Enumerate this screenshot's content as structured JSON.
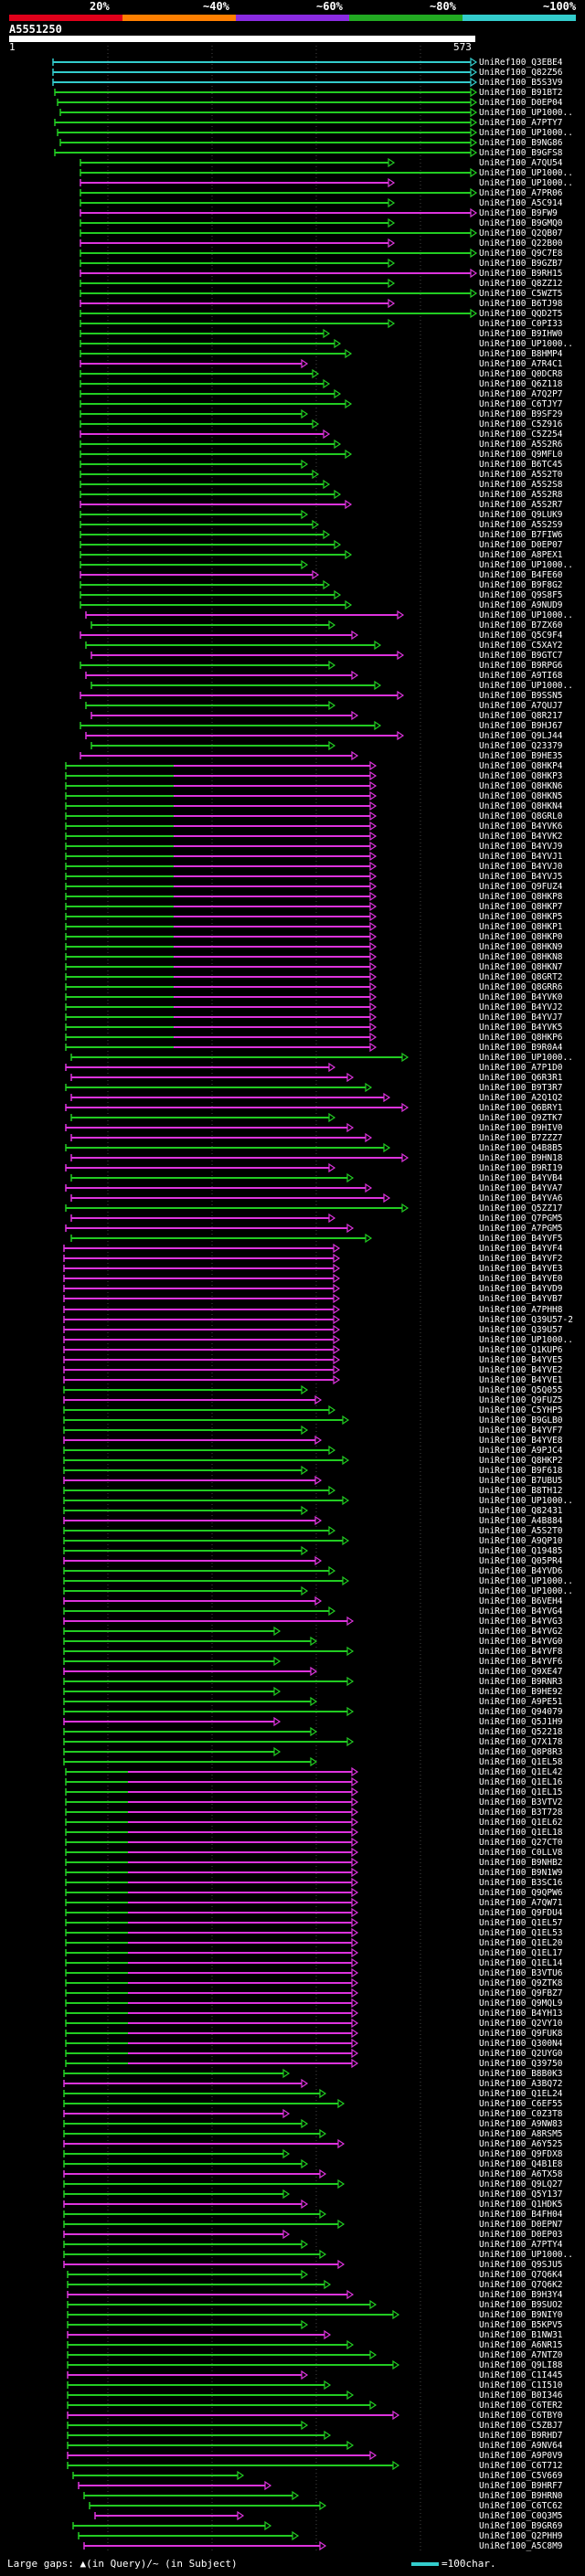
{
  "header": {
    "scale_labels": [
      "20%",
      "~40%",
      "~60%",
      "~80%",
      "~100%"
    ],
    "scale_colors": [
      "#e0001a",
      "#ff7f00",
      "#8a2be2",
      "#22aa22",
      "#33cccc"
    ],
    "query_id": "A5551250",
    "query_start": "1",
    "query_end": "573"
  },
  "footer": {
    "legend": "Large gaps: ▲(in Query)/~ (in Subject)",
    "scale_legend": "=100char."
  },
  "hit_labels": [
    "UniRef100_Q3EBE4",
    "UniRef100_Q82Z56",
    "UniRef100_B5S3V9",
    "UniRef100_B91BT2",
    "UniRef100_D0EP04",
    "UniRef100_UP1000..",
    "UniRef100_A7PTY7",
    "UniRef100_UP1000..",
    "UniRef100_B9NG86",
    "UniRef100_B9GFS8",
    "UniRef100_A7QU54",
    "UniRef100_UP1000..",
    "UniRef100_UP1000..",
    "UniRef100_A7PR06",
    "UniRef100_A5C914",
    "UniRef100_B9FW9",
    "UniRef100_B9GMQ0",
    "UniRef100_Q2QB07",
    "UniRef100_Q22B00",
    "UniRef100_Q9C7E8",
    "UniRef100_B9GZB7",
    "UniRef100_B9RH15",
    "UniRef100_Q8ZZ12",
    "UniRef100_C5WZT5",
    "UniRef100_B6TJ98",
    "UniRef100_QQD2T5",
    "UniRef100_C0PI33",
    "UniRef100_B9IHW0",
    "UniRef100_UP1000..",
    "UniRef100_B8HMP4",
    "UniRef100_A7R4C1",
    "UniRef100_Q0DCR8",
    "UniRef100_Q6Z118",
    "UniRef100_A7Q2P7",
    "UniRef100_C6TJY7",
    "UniRef100_B9SF29",
    "UniRef100_C5Z916",
    "UniRef100_C5Z254",
    "UniRef100_A5S2R6",
    "UniRef100_Q9MFL0",
    "UniRef100_B6TC45",
    "UniRef100_A5S2T0",
    "UniRef100_A5S2S8",
    "UniRef100_A5S2R8",
    "UniRef100_A5S2R7",
    "UniRef100_Q9LUK9",
    "UniRef100_A5S2S9",
    "UniRef100_B7FIW6",
    "UniRef100_D0EP07",
    "UniRef100_A8PEX1",
    "UniRef100_UP1000..",
    "UniRef100_B4FE60",
    "UniRef100_B9F8G2",
    "UniRef100_Q9S8F5",
    "UniRef100_A9NUD9",
    "UniRef100_UP1000..",
    "UniRef100_B7ZX60",
    "UniRef100_Q5C9F4",
    "UniRef100_C5XAY2",
    "UniRef100_B9GTC7",
    "UniRef100_B9RPG6",
    "UniRef100_A9TI68",
    "UniRef100_UP1000..",
    "UniRef100_B9SSN5",
    "UniRef100_A7QUJ7",
    "UniRef100_Q8R217",
    "UniRef100_B9HJ67",
    "UniRef100_Q9LJ44",
    "UniRef100_Q23379",
    "UniRef100_B9HE35",
    "UniRef100_Q8HKP4",
    "UniRef100_Q8HKP3",
    "UniRef100_Q8HKN6",
    "UniRef100_Q8HKN5",
    "UniRef100_Q8HKN4",
    "UniRef100_Q8GRL0",
    "UniRef100_B4YVK6",
    "UniRef100_B4YVK2",
    "UniRef100_B4YVJ9",
    "UniRef100_B4YVJ1",
    "UniRef100_B4YVJ0",
    "UniRef100_B4YVJ5",
    "UniRef100_Q9FUZ4",
    "UniRef100_Q8HKP8",
    "UniRef100_Q8HKP7",
    "UniRef100_Q8HKP5",
    "UniRef100_Q8HKP1",
    "UniRef100_Q8HKP0",
    "UniRef100_Q8HKN9",
    "UniRef100_Q8HKN8",
    "UniRef100_Q8HKN7",
    "UniRef100_Q8GRT2",
    "UniRef100_Q8GRR6",
    "UniRef100_B4YVK0",
    "UniRef100_B4YVJ2",
    "UniRef100_B4YVJ7",
    "UniRef100_B4YVK5",
    "UniRef100_Q8HKP6",
    "UniRef100_B9R0A4",
    "UniRef100_UP1000..",
    "UniRef100_A7P1D0",
    "UniRef100_Q6R3R1",
    "UniRef100_B9T3R7",
    "UniRef100_A2Q1Q2",
    "UniRef100_Q6BRY1",
    "UniRef100_Q9ZTK7",
    "UniRef100_B9HIV0",
    "UniRef100_B7ZZZ7",
    "UniRef100_Q4B8B5",
    "UniRef100_B9HN18",
    "UniRef100_B9RI19",
    "UniRef100_B4YVB4",
    "UniRef100_B4YVA7",
    "UniRef100_B4YVA6",
    "UniRef100_Q5ZZ17",
    "UniRef100_Q7PGM5",
    "UniRef100_A7PGM5",
    "UniRef100_B4YVF5",
    "UniRef100_B4YVF4",
    "UniRef100_B4YVF2",
    "UniRef100_B4YVE3",
    "UniRef100_B4YVE0",
    "UniRef100_B4YVD9",
    "UniRef100_B4YVB7",
    "UniRef100_A7PHH8",
    "UniRef100_Q39U57-2",
    "UniRef100_Q39U57",
    "UniRef100_UP1000..",
    "UniRef100_Q1KUP6",
    "UniRef100_B4YVE5",
    "UniRef100_B4YVE2",
    "UniRef100_B4YVE1",
    "UniRef100_Q5Q055",
    "UniRef100_Q9FUZ5",
    "UniRef100_C5YHP5",
    "UniRef100_B9GLB0",
    "UniRef100_B4YVF7",
    "UniRef100_B4YVE8",
    "UniRef100_A9PJC4",
    "UniRef100_Q8HKP2",
    "UniRef100_B9F618",
    "UniRef100_B7UBU5",
    "UniRef100_B8TH12",
    "UniRef100_UP1000..",
    "UniRef100_Q82431",
    "UniRef100_A4B884",
    "UniRef100_A5S2T0",
    "UniRef100_A9QP10",
    "UniRef100_Q19485",
    "UniRef100_Q05PR4",
    "UniRef100_B4YVD6",
    "UniRef100_UP1000..",
    "UniRef100_UP1000..",
    "UniRef100_B6VEH4",
    "UniRef100_B4YVG4",
    "UniRef100_B4YVG3",
    "UniRef100_B4YVG2",
    "UniRef100_B4YVG0",
    "UniRef100_B4YVF8",
    "UniRef100_B4YVF6",
    "UniRef100_Q9XE47",
    "UniRef100_B9RNR3",
    "UniRef100_B9HE92",
    "UniRef100_A9PE51",
    "UniRef100_Q94079",
    "UniRef100_Q5J1H9",
    "UniRef100_Q52218",
    "UniRef100_Q7X178",
    "UniRef100_Q8P8R3",
    "UniRef100_Q1EL58",
    "UniRef100_Q1EL42",
    "UniRef100_Q1EL16",
    "UniRef100_Q1EL15",
    "UniRef100_B3VTV2",
    "UniRef100_B3T728",
    "UniRef100_Q1EL62",
    "UniRef100_Q1EL18",
    "UniRef100_Q27CT0",
    "UniRef100_C0LLV8",
    "UniRef100_B9NHB2",
    "UniRef100_B9N1W9",
    "UniRef100_B3SC16",
    "UniRef100_Q9QPW6",
    "UniRef100_A7QW71",
    "UniRef100_Q9FDU4",
    "UniRef100_Q1EL57",
    "UniRef100_Q1EL53",
    "UniRef100_Q1EL20",
    "UniRef100_Q1EL17",
    "UniRef100_Q1EL14",
    "UniRef100_B3VTU6",
    "UniRef100_Q9ZTK8",
    "UniRef100_Q9FBZ7",
    "UniRef100_Q9MQL9",
    "UniRef100_B4YH13",
    "UniRef100_Q2VY10",
    "UniRef100_Q9FUK8",
    "UniRef100_Q300N4",
    "UniRef100_Q2UYG0",
    "UniRef100_Q39750",
    "UniRef100_B8B0K3",
    "UniRef100_A3BQ72",
    "UniRef100_Q1EL24",
    "UniRef100_C6EF55",
    "UniRef100_C0Z3T8",
    "UniRef100_A9NW83",
    "UniRef100_A8RSM5",
    "UniRef100_A6Y525",
    "UniRef100_Q9FDX8",
    "UniRef100_Q4B1E8",
    "UniRef100_A6TX58",
    "UniRef100_Q9LQ27",
    "UniRef100_Q5Y137",
    "UniRef100_Q1HDK5",
    "UniRef100_B4FH04",
    "UniRef100_D0EPN7",
    "UniRef100_D0EP03",
    "UniRef100_A7PTY4",
    "UniRef100_UP1000..",
    "UniRef100_Q9SJU5",
    "UniRef100_Q7Q6K4",
    "UniRef100_Q7Q6K2",
    "UniRef100_B9H3Y4",
    "UniRef100_B9SUO2",
    "UniRef100_B9NIY0",
    "UniRef100_B5KPV5",
    "UniRef100_B1NW31",
    "UniRef100_A6NR15",
    "UniRef100_A7NTZ0",
    "UniRef100_Q9LI88",
    "UniRef100_C1I445",
    "UniRef100_C1I510",
    "UniRef100_B0I346",
    "UniRef100_C6TER2",
    "UniRef100_C6TBY0",
    "UniRef100_C5ZBJ7",
    "UniRef100_B9RHD7",
    "UniRef100_A9NV64",
    "UniRef100_A9P0V9",
    "UniRef100_C6T712",
    "UniRef100_C5V669",
    "UniRef100_B9HRF7",
    "UniRef100_B9HRN0",
    "UniRef100_C6TC62",
    "UniRef100_C0Q3M5",
    "UniRef100_B9GR69",
    "UniRef100_Q2PHH9",
    "UniRef100_A5C8M9"
  ]
}
